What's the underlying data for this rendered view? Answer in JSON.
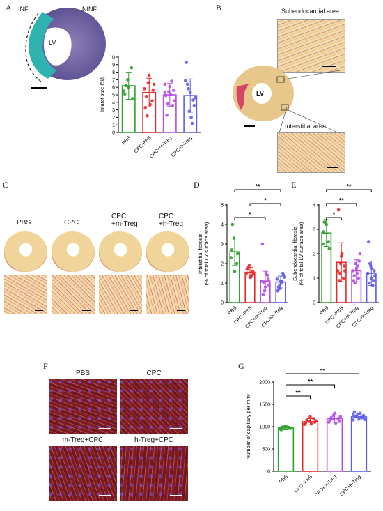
{
  "panels": {
    "A": {
      "letter": "A",
      "labels": {
        "inf": "INF",
        "ninf": "NINF",
        "lv": "LV"
      },
      "chart": {
        "type": "bar",
        "categories": [
          "PBS",
          "CPC-PBS",
          "CPC+m-Treg",
          "CPC+h-Treg"
        ],
        "values": [
          6.2,
          5.3,
          5.0,
          4.9
        ],
        "errors": [
          1.8,
          1.9,
          1.5,
          2.2
        ],
        "points": [
          [
            5.5,
            7.0,
            8.6,
            5.1,
            6.0,
            4.5,
            6.2
          ],
          [
            5.8,
            6.6,
            4.2,
            3.3,
            7.6,
            5.6,
            4.8,
            3.7,
            6.4,
            2.2
          ],
          [
            6.4,
            5.4,
            3.6,
            4.9,
            6.1,
            5.6,
            2.3,
            5.0,
            4.2,
            3.8,
            6.8,
            5.3
          ],
          [
            6.9,
            2.8,
            4.3,
            9.3,
            5.3,
            3.6,
            6.4,
            2.0,
            4.6,
            5.8,
            1.2
          ]
        ],
        "ylabel": "Infarct size (%)",
        "ylim": [
          0,
          10
        ],
        "yticks": [
          0,
          1,
          2,
          3,
          4,
          5,
          6,
          7,
          8,
          9,
          10
        ],
        "colors": [
          "#2ca02c",
          "#e8282b",
          "#b44ce6",
          "#5c5cf0"
        ]
      }
    },
    "B": {
      "letter": "B",
      "labels": {
        "subendo": "Subendocardial area",
        "inter": "Interstitial area",
        "lv": "LV"
      }
    },
    "C": {
      "letter": "C",
      "groups": [
        "PBS",
        "CPC",
        "CPC\n+m-Treg",
        "CPC\n+h-Treg"
      ]
    },
    "D": {
      "letter": "D",
      "chart": {
        "type": "bar",
        "categories": [
          "PBS",
          "CPC -PBS",
          "CPC+m-Treg",
          "CPC+h-Treg"
        ],
        "values": [
          2.6,
          1.55,
          1.1,
          1.05
        ],
        "errors": [
          0.7,
          0.25,
          0.5,
          0.3
        ],
        "points": [
          [
            2.3,
            3.3,
            2.0,
            2.7,
            1.6,
            2.5,
            4.0
          ],
          [
            1.5,
            1.9,
            1.4,
            1.7,
            1.3,
            1.6,
            1.8,
            1.3,
            1.5
          ],
          [
            1.1,
            0.6,
            1.4,
            3.0,
            0.8,
            1.2,
            0.4,
            1.5,
            0.9,
            1.0
          ],
          [
            1.2,
            0.9,
            1.5,
            0.6,
            1.1,
            1.4,
            0.8,
            1.0,
            1.3,
            0.7,
            1.1
          ]
        ],
        "ylabel": "Interstitial fibrosis\n(% of total LV surface area)",
        "ylim": [
          0,
          5
        ],
        "yticks": [
          0,
          1,
          2,
          3,
          4,
          5
        ],
        "significance": [
          {
            "from": 0,
            "to": 2,
            "label": "*"
          },
          {
            "from": 1,
            "to": 3,
            "label": "*"
          },
          {
            "from": 0,
            "to": 3,
            "label": "**"
          }
        ],
        "colors": [
          "#2ca02c",
          "#e8282b",
          "#b44ce6",
          "#5c5cf0"
        ]
      }
    },
    "E": {
      "letter": "E",
      "chart": {
        "type": "bar",
        "categories": [
          "PBS",
          "CPC -PBS",
          "CPC+m-Treg",
          "CPC+h-Treg"
        ],
        "values": [
          2.85,
          1.65,
          1.3,
          1.2
        ],
        "errors": [
          0.55,
          0.8,
          0.45,
          0.5
        ],
        "points": [
          [
            2.4,
            3.3,
            2.5,
            2.9,
            3.2,
            2.2,
            3.3
          ],
          [
            1.3,
            1.6,
            1.0,
            3.8,
            1.9,
            1.5,
            0.9,
            2.0,
            1.3,
            1.2
          ],
          [
            1.3,
            1.6,
            1.0,
            0.9,
            1.4,
            1.7,
            1.1,
            1.2,
            2.0,
            0.8,
            1.5
          ],
          [
            1.2,
            1.5,
            0.9,
            2.5,
            1.0,
            1.3,
            0.8,
            1.4,
            1.1,
            1.6,
            0.7
          ]
        ],
        "ylabel": "Subendocardial  fibrosis\n(% of total LV surface area)",
        "ylim": [
          0,
          4
        ],
        "yticks": [
          0,
          1,
          2,
          3,
          4
        ],
        "significance": [
          {
            "from": 0,
            "to": 1,
            "label": "*"
          },
          {
            "from": 0,
            "to": 2,
            "label": "**"
          },
          {
            "from": 0,
            "to": 3,
            "label": "**"
          }
        ],
        "colors": [
          "#2ca02c",
          "#e8282b",
          "#b44ce6",
          "#5c5cf0"
        ]
      }
    },
    "F": {
      "letter": "F",
      "tiles": [
        "PBS",
        "CPC",
        "m-Treg+CPC",
        "h-Treg+CPC"
      ]
    },
    "G": {
      "letter": "G",
      "chart": {
        "type": "bar",
        "categories": [
          "PBS",
          "CPC -PBS",
          "CPC+m-Treg",
          "CPC+h-Treg"
        ],
        "values": [
          970,
          1110,
          1180,
          1220
        ],
        "errors": [
          40,
          70,
          80,
          75
        ],
        "points": [
          [
            950,
            1000,
            980,
            930,
            1010,
            960,
            990
          ],
          [
            1050,
            1120,
            1180,
            1080,
            1220,
            1100,
            1150,
            1060,
            1130
          ],
          [
            1100,
            1250,
            1180,
            1150,
            1300,
            1120,
            1200,
            1080,
            1230,
            1170
          ],
          [
            1150,
            1280,
            1200,
            1330,
            1180,
            1250,
            1220,
            1300,
            1160,
            1240,
            1210,
            1270
          ]
        ],
        "ylabel": "Number of capillary per mm²",
        "ylim": [
          0,
          2000
        ],
        "yticks": [
          0,
          500,
          1000,
          1500,
          2000
        ],
        "significance": [
          {
            "from": 0,
            "to": 1,
            "label": "**"
          },
          {
            "from": 0,
            "to": 2,
            "label": "**"
          },
          {
            "from": 0,
            "to": 3,
            "label": "**"
          }
        ],
        "colors": [
          "#2ca02c",
          "#e8282b",
          "#b44ce6",
          "#5c5cf0"
        ]
      }
    }
  }
}
